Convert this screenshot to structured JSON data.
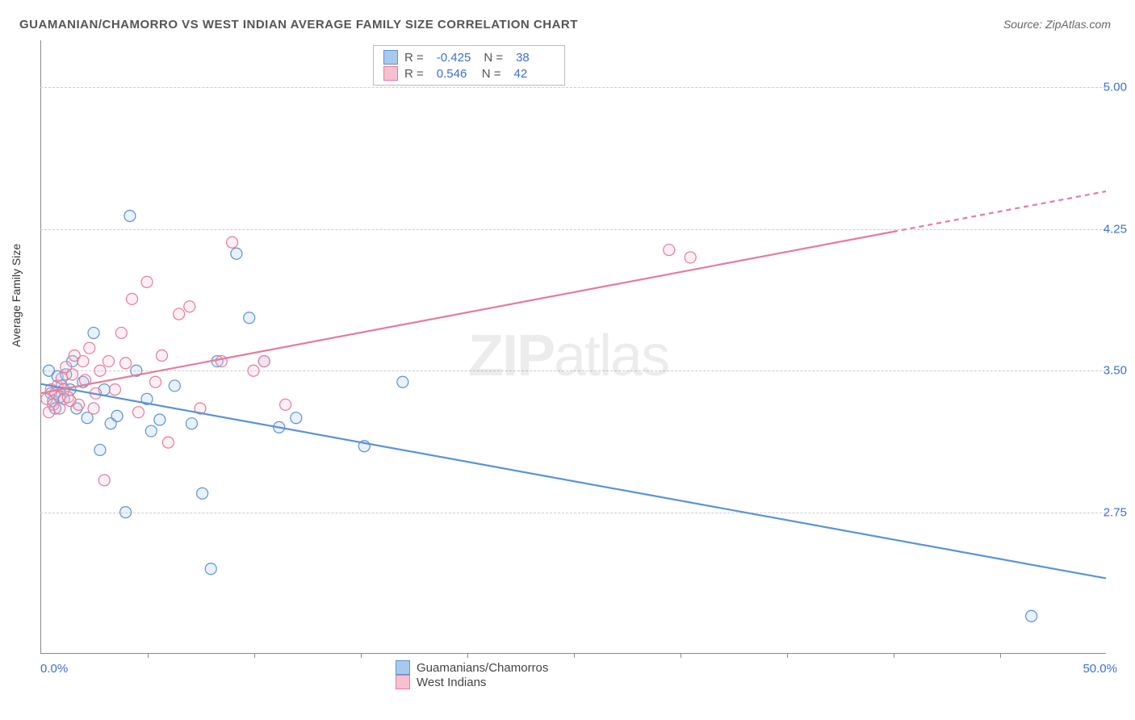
{
  "title": "GUAMANIAN/CHAMORRO VS WEST INDIAN AVERAGE FAMILY SIZE CORRELATION CHART",
  "source": "Source: ZipAtlas.com",
  "ylabel": "Average Family Size",
  "watermark_bold": "ZIP",
  "watermark_rest": "atlas",
  "chart": {
    "type": "scatter-with-trendlines",
    "background_color": "#ffffff",
    "grid_color": "#cccccc",
    "axis_color": "#888888",
    "tick_label_color": "#3b6fd6",
    "xlim": [
      0,
      50
    ],
    "ylim": [
      2.0,
      5.25
    ],
    "x_start_label": "0.0%",
    "x_end_label": "50.0%",
    "x_tick_positions": [
      5,
      10,
      15,
      20,
      25,
      30,
      35,
      40,
      45
    ],
    "y_gridlines": [
      2.75,
      3.5,
      4.25,
      5.0
    ],
    "y_tick_labels": [
      "2.75",
      "3.50",
      "4.25",
      "5.00"
    ],
    "marker_radius": 7,
    "marker_stroke_width": 1.2,
    "marker_fill_opacity": 0.25,
    "line_width": 2.2
  },
  "series": [
    {
      "id": "guamanians",
      "label": "Guamanians/Chamorros",
      "color_stroke": "#5a93d8",
      "color_fill": "#a9c9ec",
      "r_label": "R =",
      "r_value": "-0.425",
      "n_label": "N =",
      "n_value": "38",
      "trend": {
        "x1": 0,
        "y1": 3.43,
        "x2": 50,
        "y2": 2.4,
        "dash_from_x": null
      },
      "points": [
        [
          0.4,
          3.5
        ],
        [
          0.5,
          3.38
        ],
        [
          0.6,
          3.34
        ],
        [
          0.7,
          3.3
        ],
        [
          0.8,
          3.47
        ],
        [
          0.9,
          3.36
        ],
        [
          1.0,
          3.42
        ],
        [
          1.1,
          3.35
        ],
        [
          1.2,
          3.48
        ],
        [
          1.4,
          3.4
        ],
        [
          1.5,
          3.55
        ],
        [
          1.7,
          3.3
        ],
        [
          2.0,
          3.44
        ],
        [
          2.2,
          3.25
        ],
        [
          2.5,
          3.7
        ],
        [
          2.8,
          3.08
        ],
        [
          3.0,
          3.4
        ],
        [
          3.3,
          3.22
        ],
        [
          3.6,
          3.26
        ],
        [
          4.0,
          2.75
        ],
        [
          4.2,
          4.32
        ],
        [
          4.5,
          3.5
        ],
        [
          5.0,
          3.35
        ],
        [
          5.2,
          3.18
        ],
        [
          5.6,
          3.24
        ],
        [
          6.3,
          3.42
        ],
        [
          7.1,
          3.22
        ],
        [
          7.6,
          2.85
        ],
        [
          8.0,
          2.45
        ],
        [
          8.3,
          3.55
        ],
        [
          9.2,
          4.12
        ],
        [
          9.8,
          3.78
        ],
        [
          10.5,
          3.55
        ],
        [
          11.2,
          3.2
        ],
        [
          12.0,
          3.25
        ],
        [
          15.2,
          3.1
        ],
        [
          17.0,
          3.44
        ],
        [
          46.5,
          2.2
        ]
      ]
    },
    {
      "id": "west_indians",
      "label": "West Indians",
      "color_stroke": "#e87b99",
      "color_fill": "#f6c0cf",
      "r_label": "R =",
      "r_value": "0.546",
      "n_label": "N =",
      "n_value": "42",
      "trend": {
        "x1": 0,
        "y1": 3.38,
        "x2": 50,
        "y2": 4.45,
        "dash_from_x": 40
      },
      "points": [
        [
          0.3,
          3.35
        ],
        [
          0.4,
          3.28
        ],
        [
          0.5,
          3.4
        ],
        [
          0.6,
          3.32
        ],
        [
          0.7,
          3.38
        ],
        [
          0.8,
          3.42
        ],
        [
          0.9,
          3.3
        ],
        [
          1.0,
          3.46
        ],
        [
          1.1,
          3.4
        ],
        [
          1.2,
          3.52
        ],
        [
          1.3,
          3.36
        ],
        [
          1.5,
          3.48
        ],
        [
          1.6,
          3.58
        ],
        [
          1.8,
          3.32
        ],
        [
          2.0,
          3.55
        ],
        [
          2.1,
          3.45
        ],
        [
          2.3,
          3.62
        ],
        [
          2.5,
          3.3
        ],
        [
          2.8,
          3.5
        ],
        [
          3.0,
          2.92
        ],
        [
          3.2,
          3.55
        ],
        [
          3.5,
          3.4
        ],
        [
          3.8,
          3.7
        ],
        [
          4.0,
          3.54
        ],
        [
          4.3,
          3.88
        ],
        [
          4.6,
          3.28
        ],
        [
          5.0,
          3.97
        ],
        [
          5.4,
          3.44
        ],
        [
          5.7,
          3.58
        ],
        [
          6.0,
          3.12
        ],
        [
          6.5,
          3.8
        ],
        [
          7.0,
          3.84
        ],
        [
          7.5,
          3.3
        ],
        [
          8.5,
          3.55
        ],
        [
          9.0,
          4.18
        ],
        [
          10.0,
          3.5
        ],
        [
          10.5,
          3.55
        ],
        [
          11.5,
          3.32
        ],
        [
          29.5,
          4.14
        ],
        [
          30.5,
          4.1
        ],
        [
          1.4,
          3.34
        ],
        [
          2.6,
          3.38
        ]
      ]
    }
  ]
}
